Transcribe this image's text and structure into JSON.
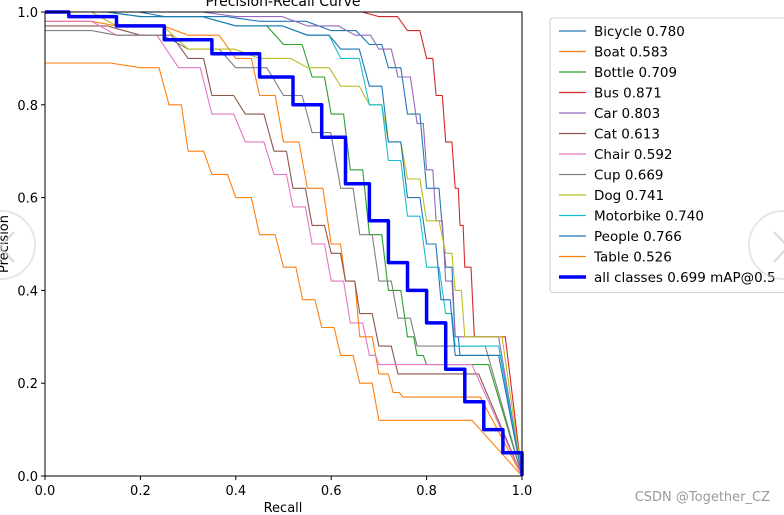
{
  "chart_data": {
    "type": "line",
    "title": "Precision-Recall Curve",
    "xlabel": "Recall",
    "ylabel": "Precision",
    "xlim": [
      0,
      1
    ],
    "ylim": [
      0,
      1
    ],
    "xticks": [
      "0.0",
      "0.2",
      "0.4",
      "0.6",
      "0.8",
      "1.0"
    ],
    "yticks": [
      "0.0",
      "0.2",
      "0.4",
      "0.6",
      "0.8",
      "1.0"
    ],
    "grid": false,
    "legend_position": "outside-right-top",
    "series": [
      {
        "name": "Bicycle",
        "label": "Bicycle 0.780",
        "ap": 0.78,
        "color": "#1f77b4",
        "x": [
          0.0,
          0.1,
          0.25,
          0.45,
          0.6,
          0.68,
          0.72,
          0.76,
          0.8,
          0.84,
          0.86,
          0.87,
          1.0
        ],
        "y": [
          1.0,
          1.0,
          0.99,
          0.98,
          0.96,
          0.93,
          0.88,
          0.78,
          0.62,
          0.45,
          0.3,
          0.26,
          0.0
        ]
      },
      {
        "name": "Boat",
        "label": "Boat 0.583",
        "ap": 0.583,
        "color": "#ff7f0e",
        "x": [
          0.0,
          0.15,
          0.3,
          0.4,
          0.45,
          0.5,
          0.55,
          0.6,
          0.63,
          0.66,
          0.7,
          0.73,
          0.75,
          1.0
        ],
        "y": [
          0.98,
          0.97,
          0.95,
          0.9,
          0.82,
          0.72,
          0.62,
          0.5,
          0.42,
          0.3,
          0.22,
          0.18,
          0.17,
          0.0
        ]
      },
      {
        "name": "Bottle",
        "label": "Bottle 0.709",
        "ap": 0.709,
        "color": "#2ca02c",
        "x": [
          0.0,
          0.2,
          0.4,
          0.5,
          0.56,
          0.6,
          0.64,
          0.68,
          0.72,
          0.76,
          0.78,
          0.8,
          1.0
        ],
        "y": [
          1.0,
          0.99,
          0.97,
          0.93,
          0.86,
          0.78,
          0.66,
          0.52,
          0.4,
          0.3,
          0.26,
          0.24,
          0.0
        ]
      },
      {
        "name": "Bus",
        "label": "Bus 0.871",
        "ap": 0.871,
        "color": "#d62728",
        "x": [
          0.0,
          0.3,
          0.6,
          0.7,
          0.76,
          0.8,
          0.82,
          0.84,
          0.86,
          0.87,
          0.88,
          0.9,
          1.0
        ],
        "y": [
          1.0,
          1.0,
          1.0,
          0.99,
          0.96,
          0.9,
          0.82,
          0.72,
          0.62,
          0.54,
          0.45,
          0.3,
          0.0
        ]
      },
      {
        "name": "Car",
        "label": "Car 0.803",
        "ap": 0.803,
        "color": "#9467bd",
        "x": [
          0.0,
          0.2,
          0.4,
          0.55,
          0.65,
          0.7,
          0.74,
          0.78,
          0.8,
          0.82,
          0.84,
          0.86,
          1.0
        ],
        "y": [
          1.0,
          1.0,
          0.99,
          0.97,
          0.95,
          0.92,
          0.86,
          0.76,
          0.66,
          0.55,
          0.42,
          0.3,
          0.0
        ]
      },
      {
        "name": "Cat",
        "label": "Cat 0.613",
        "ap": 0.613,
        "color": "#8c564b",
        "x": [
          0.0,
          0.2,
          0.3,
          0.35,
          0.42,
          0.48,
          0.52,
          0.56,
          0.6,
          0.63,
          0.66,
          0.7,
          0.74,
          1.0
        ],
        "y": [
          0.97,
          0.95,
          0.9,
          0.82,
          0.78,
          0.7,
          0.62,
          0.54,
          0.48,
          0.42,
          0.35,
          0.28,
          0.22,
          0.0
        ]
      },
      {
        "name": "Chair",
        "label": "Chair 0.592",
        "ap": 0.592,
        "color": "#e377c2",
        "x": [
          0.0,
          0.15,
          0.28,
          0.35,
          0.42,
          0.48,
          0.52,
          0.56,
          0.6,
          0.64,
          0.68,
          0.7,
          1.0
        ],
        "y": [
          0.98,
          0.95,
          0.88,
          0.78,
          0.72,
          0.65,
          0.58,
          0.5,
          0.42,
          0.33,
          0.26,
          0.24,
          0.0
        ]
      },
      {
        "name": "Cup",
        "label": "Cup 0.669",
        "ap": 0.669,
        "color": "#7f7f7f",
        "x": [
          0.0,
          0.15,
          0.3,
          0.4,
          0.5,
          0.56,
          0.62,
          0.66,
          0.7,
          0.74,
          0.78,
          1.0
        ],
        "y": [
          0.96,
          0.95,
          0.92,
          0.88,
          0.82,
          0.74,
          0.62,
          0.52,
          0.42,
          0.34,
          0.28,
          0.0
        ]
      },
      {
        "name": "Dog",
        "label": "Dog 0.741",
        "ap": 0.741,
        "color": "#bcbd22",
        "x": [
          0.0,
          0.15,
          0.3,
          0.45,
          0.55,
          0.62,
          0.68,
          0.72,
          0.76,
          0.8,
          0.84,
          0.86,
          0.88,
          1.0
        ],
        "y": [
          1.0,
          0.97,
          0.92,
          0.9,
          0.88,
          0.84,
          0.8,
          0.72,
          0.64,
          0.55,
          0.48,
          0.4,
          0.3,
          0.0
        ]
      },
      {
        "name": "Motorbike",
        "label": "Motorbike 0.740",
        "ap": 0.74,
        "color": "#17becf",
        "x": [
          0.0,
          0.2,
          0.4,
          0.55,
          0.62,
          0.68,
          0.72,
          0.76,
          0.8,
          0.84,
          0.86,
          1.0
        ],
        "y": [
          1.0,
          0.99,
          0.97,
          0.95,
          0.9,
          0.8,
          0.68,
          0.56,
          0.45,
          0.35,
          0.28,
          0.0
        ]
      },
      {
        "name": "People",
        "label": "People 0.766",
        "ap": 0.766,
        "color": "#1f77b4",
        "x": [
          0.0,
          0.2,
          0.4,
          0.55,
          0.62,
          0.68,
          0.72,
          0.76,
          0.8,
          0.83,
          0.86,
          1.0
        ],
        "y": [
          1.0,
          0.99,
          0.97,
          0.95,
          0.92,
          0.84,
          0.72,
          0.6,
          0.5,
          0.38,
          0.26,
          0.0
        ]
      },
      {
        "name": "Table",
        "label": "Table 0.526",
        "ap": 0.526,
        "color": "#ff7f0e",
        "x": [
          0.0,
          0.02,
          0.2,
          0.26,
          0.3,
          0.35,
          0.4,
          0.45,
          0.5,
          0.54,
          0.58,
          0.62,
          0.66,
          0.7,
          1.0
        ],
        "y": [
          0.89,
          0.89,
          0.88,
          0.8,
          0.7,
          0.65,
          0.6,
          0.52,
          0.45,
          0.38,
          0.32,
          0.26,
          0.2,
          0.12,
          0.0
        ]
      },
      {
        "name": "all classes",
        "label": "all classes 0.699 mAP@0.5",
        "ap": 0.699,
        "color": "#0000ff",
        "bold": true,
        "x": [
          0.0,
          0.05,
          0.15,
          0.25,
          0.35,
          0.45,
          0.52,
          0.58,
          0.63,
          0.68,
          0.72,
          0.76,
          0.8,
          0.84,
          0.88,
          0.92,
          0.96,
          1.0
        ],
        "y": [
          1.0,
          0.99,
          0.97,
          0.94,
          0.91,
          0.86,
          0.8,
          0.73,
          0.63,
          0.55,
          0.46,
          0.4,
          0.33,
          0.23,
          0.16,
          0.1,
          0.05,
          0.0
        ]
      }
    ]
  },
  "watermark": "CSDN @Together_CZ",
  "nav": {
    "left_icon": "chevron-left-icon",
    "right_icon": "chevron-right-icon"
  }
}
